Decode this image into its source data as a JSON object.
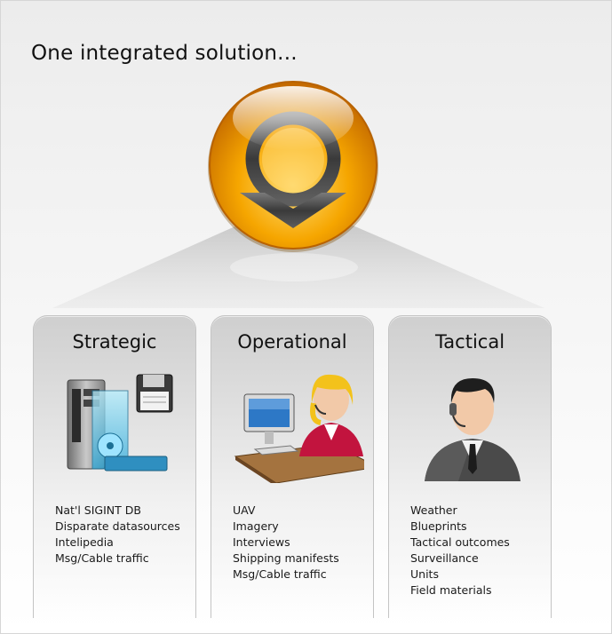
{
  "headline": "One integrated solution...",
  "colors": {
    "orb_light": "#ffd060",
    "orb_mid": "#f5a800",
    "orb_dark": "#c76e00",
    "ring": "#4d4d4d"
  },
  "columns": [
    {
      "title": "Strategic",
      "icon": "server-floppy-icon",
      "items": [
        "Nat'l SIGINT DB",
        "Disparate datasources",
        "Intelipedia",
        "Msg/Cable traffic"
      ]
    },
    {
      "title": "Operational",
      "icon": "operator-workstation-icon",
      "items": [
        "UAV",
        "Imagery",
        "Interviews",
        "Shipping manifests",
        "Msg/Cable traffic"
      ]
    },
    {
      "title": "Tactical",
      "icon": "headset-agent-icon",
      "items": [
        "Weather",
        "Blueprints",
        "Tactical outcomes",
        "Surveillance",
        "Units",
        "Field materials"
      ]
    }
  ]
}
